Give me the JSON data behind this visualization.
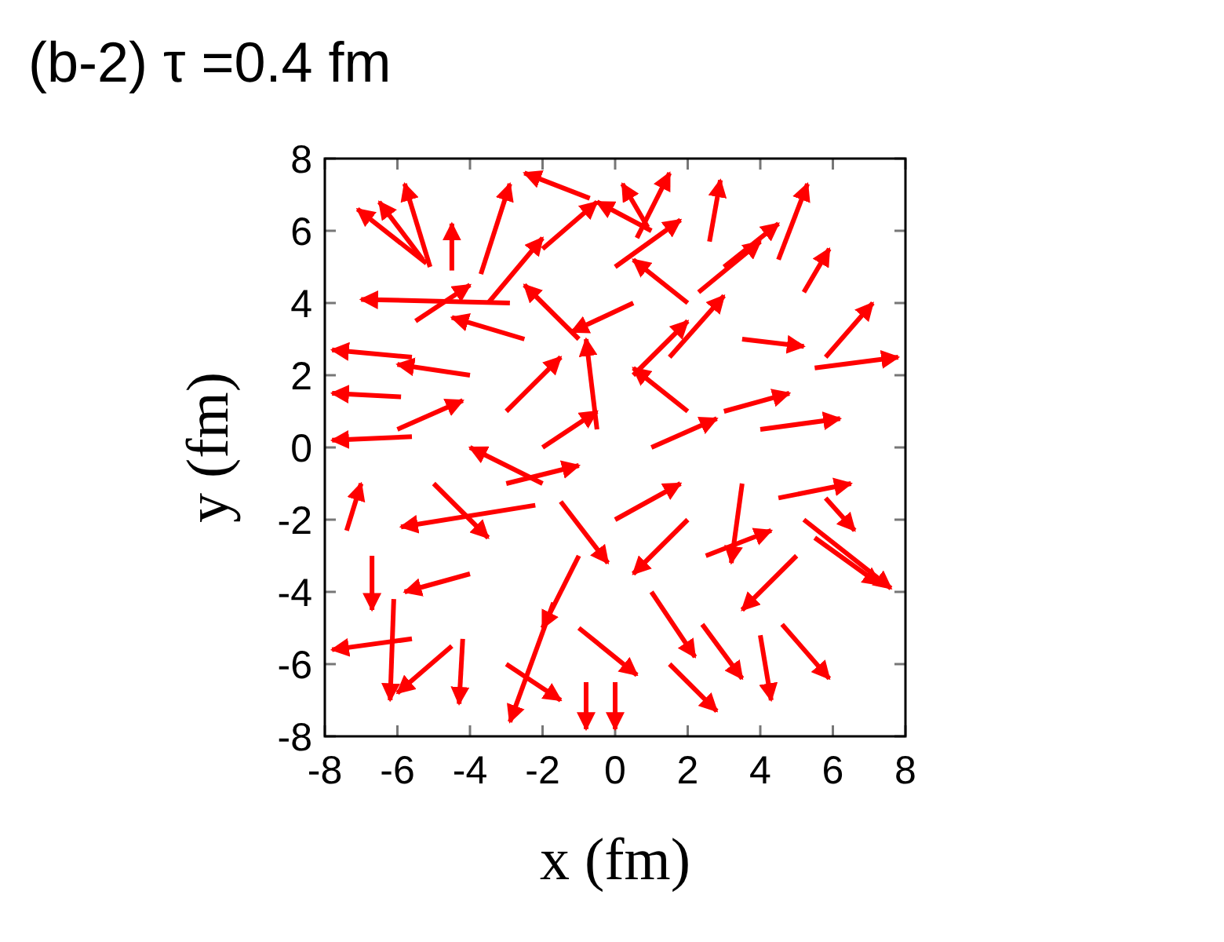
{
  "chart_data": {
    "type": "line",
    "title": "(b-2)  τ =0.4 fm",
    "xlabel": "x (fm)",
    "ylabel": "y (fm)",
    "xlim": [
      -8,
      8
    ],
    "ylim": [
      -8,
      8
    ],
    "xticks": [
      -8,
      -6,
      -4,
      -2,
      0,
      2,
      4,
      6,
      8
    ],
    "yticks": [
      -8,
      -6,
      -4,
      -2,
      0,
      2,
      4,
      6,
      8
    ],
    "grid": false,
    "marker": "none",
    "line_style": "solid",
    "series": [
      {
        "color": "#ff0000",
        "x": [
          -5.2,
          -7.1
        ],
        "values": [
          5.1,
          6.6
        ]
      },
      {
        "color": "#ff0000",
        "x": [
          -5.3,
          -6.5
        ],
        "values": [
          5.2,
          6.8
        ]
      },
      {
        "color": "#ff0000",
        "x": [
          -5.1,
          -5.8
        ],
        "values": [
          5.0,
          7.3
        ]
      },
      {
        "color": "#ff0000",
        "x": [
          -4.5,
          -4.5
        ],
        "values": [
          4.9,
          6.2
        ]
      },
      {
        "color": "#ff0000",
        "x": [
          -3.7,
          -2.9
        ],
        "values": [
          4.8,
          7.3
        ]
      },
      {
        "color": "#ff0000",
        "x": [
          -0.7,
          -2.5
        ],
        "values": [
          6.9,
          7.6
        ]
      },
      {
        "color": "#ff0000",
        "x": [
          -2.9,
          -7.0
        ],
        "values": [
          4.0,
          4.1
        ]
      },
      {
        "color": "#ff0000",
        "x": [
          -5.6,
          -7.8
        ],
        "values": [
          2.5,
          2.7
        ]
      },
      {
        "color": "#ff0000",
        "x": [
          -5.9,
          -7.8
        ],
        "values": [
          1.4,
          1.5
        ]
      },
      {
        "color": "#ff0000",
        "x": [
          0.6,
          1.5
        ],
        "values": [
          5.8,
          7.6
        ]
      },
      {
        "color": "#ff0000",
        "x": [
          0.9,
          0.2
        ],
        "values": [
          6.1,
          7.3
        ]
      },
      {
        "color": "#ff0000",
        "x": [
          2.6,
          2.9
        ],
        "values": [
          5.7,
          7.4
        ]
      },
      {
        "color": "#ff0000",
        "x": [
          4.5,
          5.3
        ],
        "values": [
          5.2,
          7.3
        ]
      },
      {
        "color": "#ff0000",
        "x": [
          5.2,
          5.9
        ],
        "values": [
          4.3,
          5.5
        ]
      },
      {
        "color": "#ff0000",
        "x": [
          5.8,
          7.1
        ],
        "values": [
          2.5,
          4.0
        ]
      },
      {
        "color": "#ff0000",
        "x": [
          5.5,
          7.8
        ],
        "values": [
          2.2,
          2.5
        ]
      },
      {
        "color": "#ff0000",
        "x": [
          2.3,
          4.0
        ],
        "values": [
          4.3,
          5.7
        ]
      },
      {
        "color": "#ff0000",
        "x": [
          -5.6,
          -7.8
        ],
        "values": [
          0.3,
          0.2
        ]
      },
      {
        "color": "#ff0000",
        "x": [
          -7.4,
          -7.0
        ],
        "values": [
          -2.3,
          -1.0
        ]
      },
      {
        "color": "#ff0000",
        "x": [
          -6.1,
          -6.2
        ],
        "values": [
          -4.2,
          -7.0
        ]
      },
      {
        "color": "#ff0000",
        "x": [
          -5.6,
          -7.8
        ],
        "values": [
          -5.3,
          -5.6
        ]
      },
      {
        "color": "#ff0000",
        "x": [
          -4.2,
          -4.3
        ],
        "values": [
          -5.3,
          -7.1
        ]
      },
      {
        "color": "#ff0000",
        "x": [
          -1.7,
          -2.9
        ],
        "values": [
          -4.3,
          -7.6
        ]
      },
      {
        "color": "#ff0000",
        "x": [
          -6.7,
          -6.7
        ],
        "values": [
          -3.0,
          -4.5
        ]
      },
      {
        "color": "#ff0000",
        "x": [
          -2.2,
          -5.9
        ],
        "values": [
          -1.6,
          -2.2
        ]
      },
      {
        "color": "#ff0000",
        "x": [
          -0.8,
          -0.8
        ],
        "values": [
          -6.5,
          -7.8
        ]
      },
      {
        "color": "#ff0000",
        "x": [
          5.2,
          7.6
        ],
        "values": [
          -2.0,
          -3.9
        ]
      },
      {
        "color": "#ff0000",
        "x": [
          5.5,
          7.3
        ],
        "values": [
          -2.5,
          -3.8
        ]
      },
      {
        "color": "#ff0000",
        "x": [
          4.6,
          5.9
        ],
        "values": [
          -4.9,
          -6.4
        ]
      },
      {
        "color": "#ff0000",
        "x": [
          4.0,
          4.3
        ],
        "values": [
          -5.2,
          -7.0
        ]
      },
      {
        "color": "#ff0000",
        "x": [
          2.4,
          3.5
        ],
        "values": [
          -4.9,
          -6.4
        ]
      },
      {
        "color": "#ff0000",
        "x": [
          5.8,
          6.6
        ],
        "values": [
          -1.4,
          -2.3
        ]
      },
      {
        "color": "#ff0000",
        "x": [
          4.5,
          6.5
        ],
        "values": [
          -1.4,
          -1.0
        ]
      },
      {
        "color": "#ff0000",
        "x": [
          0.0,
          0.0
        ],
        "values": [
          -6.5,
          -7.8
        ]
      },
      {
        "color": "#ff0000",
        "x": [
          -3,
          -1.5
        ],
        "values": [
          1,
          2.5
        ]
      },
      {
        "color": "#ff0000",
        "x": [
          -1,
          -2.5
        ],
        "values": [
          3,
          4.5
        ]
      },
      {
        "color": "#ff0000",
        "x": [
          0.5,
          2
        ],
        "values": [
          2,
          3.5
        ]
      },
      {
        "color": "#ff0000",
        "x": [
          1,
          2.8
        ],
        "values": [
          0,
          0.8
        ]
      },
      {
        "color": "#ff0000",
        "x": [
          -2,
          -4
        ],
        "values": [
          -1,
          0
        ]
      },
      {
        "color": "#ff0000",
        "x": [
          -3,
          -1
        ],
        "values": [
          -1,
          -0.5
        ]
      },
      {
        "color": "#ff0000",
        "x": [
          2,
          0.5
        ],
        "values": [
          -2,
          -3.5
        ]
      },
      {
        "color": "#ff0000",
        "x": [
          3,
          4.8
        ],
        "values": [
          1,
          1.5
        ]
      },
      {
        "color": "#ff0000",
        "x": [
          -1,
          -2
        ],
        "values": [
          -3,
          -5
        ]
      },
      {
        "color": "#ff0000",
        "x": [
          1,
          2.2
        ],
        "values": [
          -4,
          -5.8
        ]
      },
      {
        "color": "#ff0000",
        "x": [
          -4,
          -6
        ],
        "values": [
          2,
          2.3
        ]
      },
      {
        "color": "#ff0000",
        "x": [
          -5,
          -3.5
        ],
        "values": [
          -1,
          -2.5
        ]
      },
      {
        "color": "#ff0000",
        "x": [
          0,
          1.8
        ],
        "values": [
          5,
          6.3
        ]
      },
      {
        "color": "#ff0000",
        "x": [
          2,
          0.5
        ],
        "values": [
          4,
          5.2
        ]
      },
      {
        "color": "#ff0000",
        "x": [
          3.5,
          5.2
        ],
        "values": [
          3,
          2.8
        ]
      },
      {
        "color": "#ff0000",
        "x": [
          -2,
          -0.5
        ],
        "values": [
          5.5,
          6.8
        ]
      },
      {
        "color": "#ff0000",
        "x": [
          -4,
          -5.8
        ],
        "values": [
          -3.5,
          -4
        ]
      },
      {
        "color": "#ff0000",
        "x": [
          2.5,
          4.3
        ],
        "values": [
          -3,
          -2.3
        ]
      },
      {
        "color": "#ff0000",
        "x": [
          -0.5,
          -0.8
        ],
        "values": [
          0.5,
          3
        ]
      },
      {
        "color": "#ff0000",
        "x": [
          1.5,
          3
        ],
        "values": [
          2.5,
          4.2
        ]
      },
      {
        "color": "#ff0000",
        "x": [
          -2.5,
          -4.5
        ],
        "values": [
          3,
          3.6
        ]
      },
      {
        "color": "#ff0000",
        "x": [
          0,
          1.8
        ],
        "values": [
          -2,
          -1
        ]
      },
      {
        "color": "#ff0000",
        "x": [
          -1.5,
          -0.2
        ],
        "values": [
          -1.5,
          -3.2
        ]
      },
      {
        "color": "#ff0000",
        "x": [
          3.5,
          3.2
        ],
        "values": [
          -1,
          -3.2
        ]
      },
      {
        "color": "#ff0000",
        "x": [
          4,
          6.2
        ],
        "values": [
          0.5,
          0.8
        ]
      },
      {
        "color": "#ff0000",
        "x": [
          -3.5,
          -2
        ],
        "values": [
          4,
          5.8
        ]
      },
      {
        "color": "#ff0000",
        "x": [
          1,
          -0.5
        ],
        "values": [
          6,
          6.8
        ]
      },
      {
        "color": "#ff0000",
        "x": [
          -6,
          -4.2
        ],
        "values": [
          0.5,
          1.3
        ]
      },
      {
        "color": "#ff0000",
        "x": [
          -5.5,
          -4
        ],
        "values": [
          3.5,
          4.5
        ]
      },
      {
        "color": "#ff0000",
        "x": [
          2,
          0.5
        ],
        "values": [
          1,
          2.2
        ]
      },
      {
        "color": "#ff0000",
        "x": [
          -1,
          0.6
        ],
        "values": [
          -5,
          -6.3
        ]
      },
      {
        "color": "#ff0000",
        "x": [
          1.5,
          2.8
        ],
        "values": [
          -6,
          -7.3
        ]
      },
      {
        "color": "#ff0000",
        "x": [
          -3,
          -1.5
        ],
        "values": [
          -6,
          -7
        ]
      },
      {
        "color": "#ff0000",
        "x": [
          3,
          4.5
        ],
        "values": [
          5,
          6.2
        ]
      },
      {
        "color": "#ff0000",
        "x": [
          0.5,
          -1.2
        ],
        "values": [
          4,
          3.2
        ]
      },
      {
        "color": "#ff0000",
        "x": [
          -2,
          -0.5
        ],
        "values": [
          0,
          1
        ]
      },
      {
        "color": "#ff0000",
        "x": [
          5,
          3.5
        ],
        "values": [
          -3,
          -4.5
        ]
      },
      {
        "color": "#ff0000",
        "x": [
          -4.5,
          -6
        ],
        "values": [
          -5.5,
          -6.8
        ]
      }
    ]
  }
}
